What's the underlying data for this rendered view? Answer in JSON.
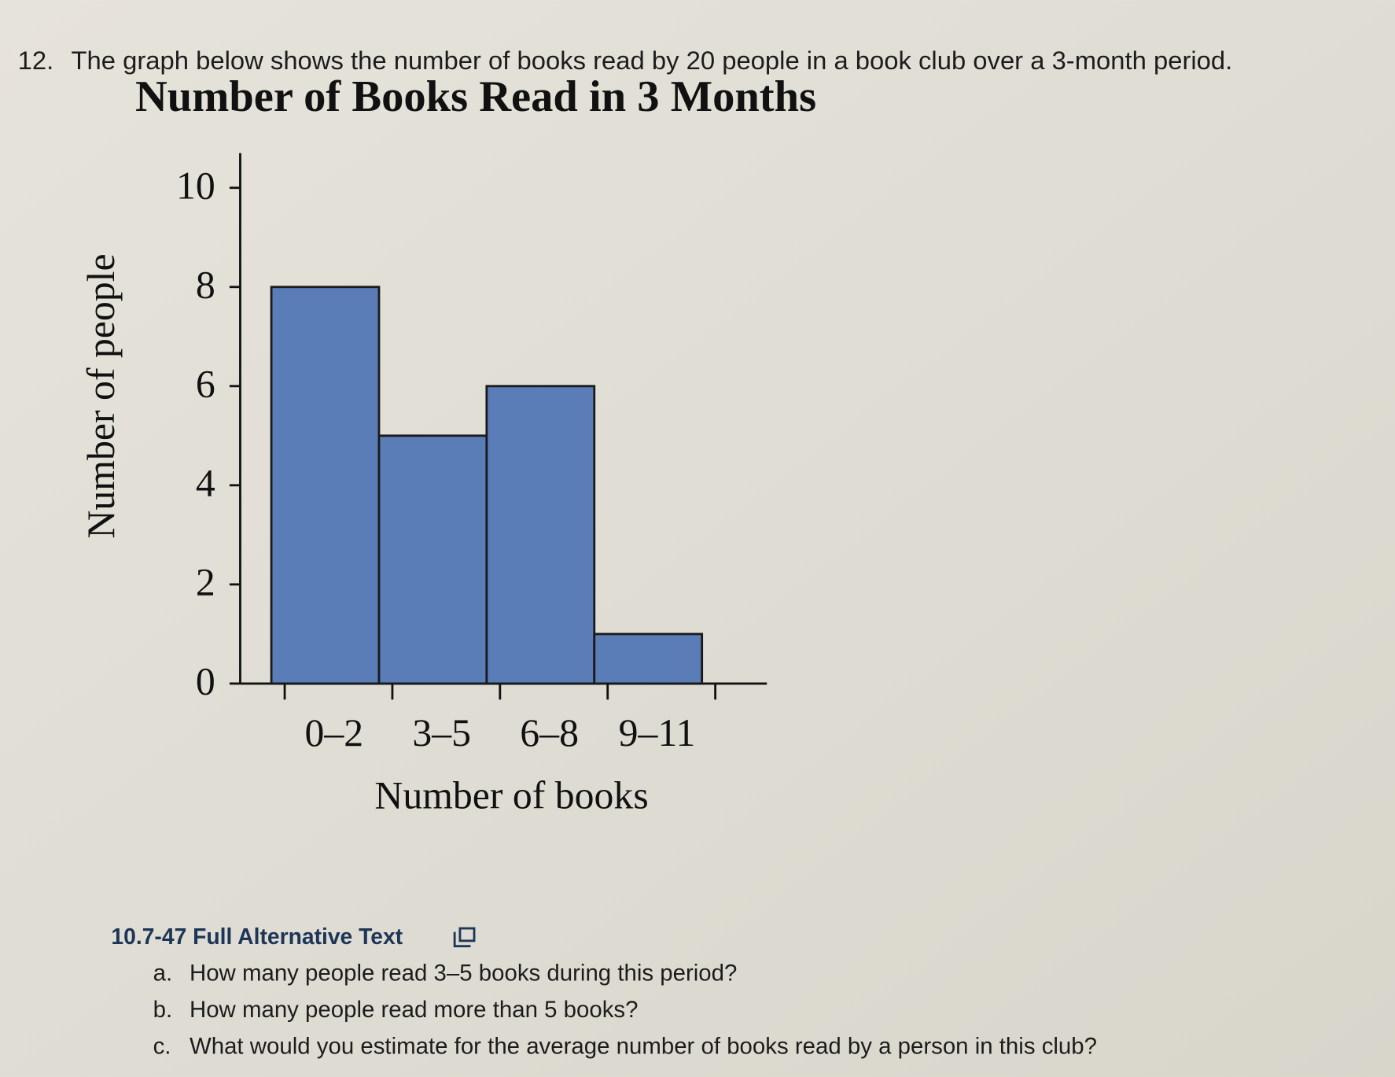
{
  "question": {
    "number": "12.",
    "text": "The graph below shows the number of books read by 20 people in a book club over a 3-month period."
  },
  "chart_data": {
    "type": "bar",
    "title": "Number of Books Read in 3 Months",
    "x_label": "Number of books",
    "y_label": "Number of people",
    "categories": [
      "0–2",
      "3–5",
      "6–8",
      "9–11"
    ],
    "values": [
      8,
      5,
      6,
      1
    ],
    "color": "#5a7db8",
    "ylim": [
      0,
      10.7
    ],
    "yticks": [
      0,
      2,
      4,
      6,
      8,
      10
    ],
    "grid": false
  },
  "alt_text_link": "10.7-47 Full Alternative Text",
  "parts": [
    {
      "label": "a.",
      "text": "How many people read 3–5 books during this period?"
    },
    {
      "label": "b.",
      "text": "How many people read more than 5 books?"
    },
    {
      "label": "c.",
      "text": "What would you estimate for the average number of books read by a person in this club?"
    }
  ]
}
